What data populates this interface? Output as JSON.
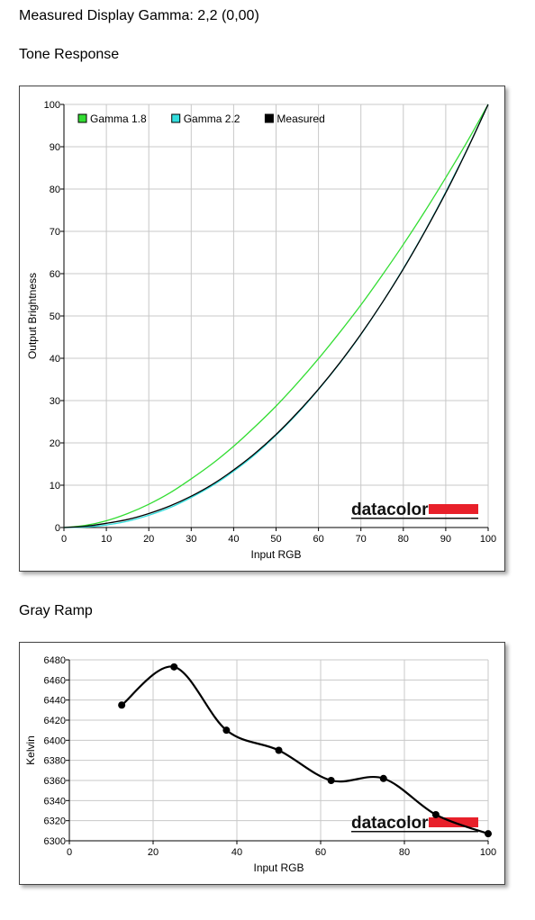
{
  "headings": {
    "main": "Measured Display Gamma: 2,2 (0,00)",
    "tone": "Tone Response",
    "gray": "Gray Ramp"
  },
  "brand": {
    "name": "datacolor",
    "bar_color": "#e8202a"
  },
  "chart_data": [
    {
      "type": "line",
      "xlabel": "Input RGB",
      "ylabel": "Output Brightness",
      "xlim": [
        0,
        100
      ],
      "ylim": [
        0,
        100
      ],
      "xticks": [
        0,
        10,
        20,
        30,
        40,
        50,
        60,
        70,
        80,
        90,
        100
      ],
      "yticks": [
        0,
        10,
        20,
        30,
        40,
        50,
        60,
        70,
        80,
        90,
        100
      ],
      "grid": true,
      "legend_position": "top-left",
      "x": [
        0,
        5,
        10,
        15,
        20,
        25,
        30,
        35,
        40,
        45,
        50,
        55,
        60,
        65,
        70,
        75,
        80,
        85,
        90,
        95,
        100
      ],
      "series": [
        {
          "name": "Gamma 1.8",
          "color": "#33dd33",
          "values": [
            0,
            0.5,
            1.6,
            3.3,
            5.5,
            8.2,
            11.5,
            15.1,
            19.2,
            23.8,
            28.7,
            34.1,
            39.9,
            46.1,
            52.6,
            59.6,
            66.9,
            74.6,
            82.7,
            91.1,
            100
          ]
        },
        {
          "name": "Gamma 2.2",
          "color": "#33dddd",
          "values": [
            0,
            0.1,
            0.6,
            1.5,
            2.9,
            4.7,
            7.1,
            9.9,
            13.3,
            17.2,
            21.8,
            26.9,
            32.6,
            38.8,
            45.6,
            53.1,
            61.2,
            69.9,
            79.3,
            89.3,
            100
          ]
        },
        {
          "name": "Measured",
          "color": "#000000",
          "values": [
            0,
            0.3,
            1.0,
            1.9,
            3.3,
            5.1,
            7.4,
            10.2,
            13.6,
            17.5,
            22.0,
            27.1,
            32.7,
            38.9,
            45.7,
            53.1,
            61.1,
            69.8,
            79.1,
            89.2,
            100
          ]
        }
      ]
    },
    {
      "type": "line",
      "xlabel": "Input RGB",
      "ylabel": "Kelvin",
      "xlim": [
        0,
        100
      ],
      "ylim": [
        6300,
        6480
      ],
      "xticks": [
        0,
        20,
        40,
        60,
        80,
        100
      ],
      "yticks": [
        6300,
        6320,
        6340,
        6360,
        6380,
        6400,
        6420,
        6440,
        6460,
        6480
      ],
      "grid": true,
      "x": [
        12.5,
        25,
        37.5,
        50,
        62.5,
        75,
        87.5,
        100
      ],
      "series": [
        {
          "color": "#000000",
          "values": [
            6435,
            6473,
            6410,
            6390,
            6360,
            6362,
            6326,
            6307
          ]
        }
      ]
    }
  ]
}
